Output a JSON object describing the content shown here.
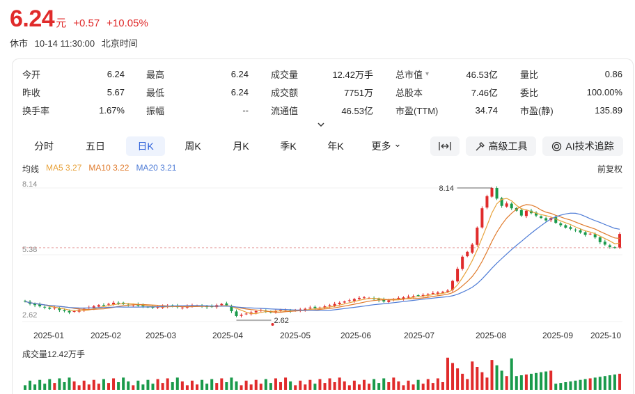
{
  "quote": {
    "price": "6.24",
    "unit": "元",
    "change": "+0.57",
    "change_pct": "+10.05%",
    "status": "休市",
    "datetime": "10-14 11:30:00",
    "timezone": "北京时间"
  },
  "stats": [
    {
      "label": "今开",
      "value": "6.24",
      "color": "red"
    },
    {
      "label": "最高",
      "value": "6.24",
      "color": "red"
    },
    {
      "label": "成交量",
      "value": "12.42万手",
      "color": "normal"
    },
    {
      "label": "总市值",
      "value": "46.53亿",
      "color": "normal",
      "has_arrow": true
    },
    {
      "label": "量比",
      "value": "0.86",
      "color": "green"
    },
    {
      "label": "昨收",
      "value": "5.67",
      "color": "normal"
    },
    {
      "label": "最低",
      "value": "6.24",
      "color": "red"
    },
    {
      "label": "成交额",
      "value": "7751万",
      "color": "normal"
    },
    {
      "label": "总股本",
      "value": "7.46亿",
      "color": "normal"
    },
    {
      "label": "委比",
      "value": "100.00%",
      "color": "normal"
    },
    {
      "label": "换手率",
      "value": "1.67%",
      "color": "normal"
    },
    {
      "label": "振幅",
      "value": "--",
      "color": "normal"
    },
    {
      "label": "流通值",
      "value": "46.53亿",
      "color": "normal"
    },
    {
      "label": "市盈(TTM)",
      "value": "34.74",
      "color": "normal"
    },
    {
      "label": "市盈(静)",
      "value": "135.89",
      "color": "normal"
    }
  ],
  "tabs": [
    {
      "label": "分时",
      "active": false
    },
    {
      "label": "五日",
      "active": false
    },
    {
      "label": "日K",
      "active": true
    },
    {
      "label": "周K",
      "active": false
    },
    {
      "label": "月K",
      "active": false
    },
    {
      "label": "季K",
      "active": false
    },
    {
      "label": "年K",
      "active": false
    },
    {
      "label": "更多",
      "active": false
    }
  ],
  "tools": {
    "advanced": "高级工具",
    "ai": "AI技术追踪"
  },
  "legend": {
    "title": "均线",
    "ma5": "MA5 3.27",
    "ma10": "MA10 3.22",
    "ma20": "MA20 3.21",
    "fq": "前复权"
  },
  "colors": {
    "up": "#e02b2b",
    "down": "#1a9a4b",
    "ma5": "#e8a23a",
    "ma10": "#e07a2b",
    "ma20": "#4d7bd6",
    "accent": "#2b5fd9"
  },
  "volume_label": "成交量12.42万手",
  "chart_data": {
    "type": "candlestick",
    "y_ticks": [
      "8.14",
      "5.38",
      "2.62"
    ],
    "ylim": [
      2.62,
      8.14
    ],
    "x_ticks": [
      "2025-01",
      "2025-02",
      "2025-03",
      "2025-04",
      "2025-05",
      "2025-06",
      "2025-07",
      "2025-08",
      "2025-09",
      "2025-10"
    ],
    "high_marker": "8.14",
    "low_marker": "2.62",
    "reference_price": 5.67,
    "close_series": [
      3.45,
      3.35,
      3.3,
      3.25,
      3.2,
      3.15,
      3.2,
      3.1,
      3.05,
      3.0,
      3.05,
      3.1,
      3.15,
      3.2,
      3.25,
      3.3,
      3.3,
      3.35,
      3.4,
      3.38,
      3.35,
      3.3,
      3.32,
      3.28,
      3.25,
      3.22,
      3.2,
      3.22,
      3.25,
      3.28,
      3.25,
      3.22,
      3.2,
      3.25,
      3.3,
      3.28,
      3.25,
      3.22,
      3.24,
      3.3,
      3.35,
      3.3,
      3.05,
      2.85,
      2.9,
      2.95,
      3.0,
      3.05,
      3.1,
      3.05,
      3.0,
      3.05,
      3.1,
      3.08,
      3.05,
      3.1,
      3.12,
      3.15,
      3.2,
      3.18,
      3.2,
      3.25,
      3.3,
      3.35,
      3.4,
      3.45,
      3.5,
      3.55,
      3.6,
      3.62,
      3.6,
      3.55,
      3.5,
      3.45,
      3.5,
      3.55,
      3.6,
      3.62,
      3.65,
      3.68,
      3.7,
      3.72,
      3.75,
      3.8,
      3.82,
      3.85,
      3.9,
      4.3,
      4.8,
      5.3,
      5.5,
      5.8,
      6.5,
      7.3,
      7.8,
      8.14,
      7.7,
      7.4,
      7.5,
      7.3,
      7.2,
      7.0,
      7.2,
      7.1,
      7.0,
      6.9,
      6.8,
      6.9,
      6.7,
      6.6,
      6.5,
      6.45,
      6.4,
      6.3,
      6.2,
      6.25,
      6.1,
      5.9,
      5.8,
      5.7,
      5.67,
      6.24
    ]
  }
}
